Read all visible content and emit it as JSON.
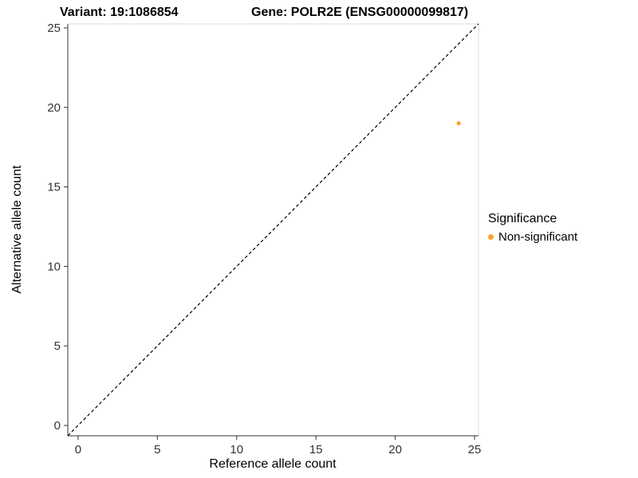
{
  "chart_data": {
    "type": "scatter",
    "title_left": "Variant: 19:1086854",
    "title_right": "Gene: POLR2E (ENSG00000099817)",
    "xlabel": "Reference allele count",
    "ylabel": "Alternative allele count",
    "xlim": [
      -0.65,
      25.25
    ],
    "ylim": [
      -0.65,
      25.25
    ],
    "x_ticks": [
      0,
      5,
      10,
      15,
      20,
      25
    ],
    "y_ticks": [
      0,
      5,
      10,
      15,
      20,
      25
    ],
    "grid": false,
    "identity_line": {
      "style": "dashed",
      "color": "#000000"
    },
    "series": [
      {
        "name": "Non-significant",
        "color": "#F8A42D",
        "points": [
          {
            "x": 24,
            "y": 19
          }
        ]
      }
    ],
    "legend": {
      "title": "Significance",
      "position": "right",
      "items": [
        {
          "label": "Non-significant",
          "color": "#F8A42D"
        }
      ]
    }
  }
}
